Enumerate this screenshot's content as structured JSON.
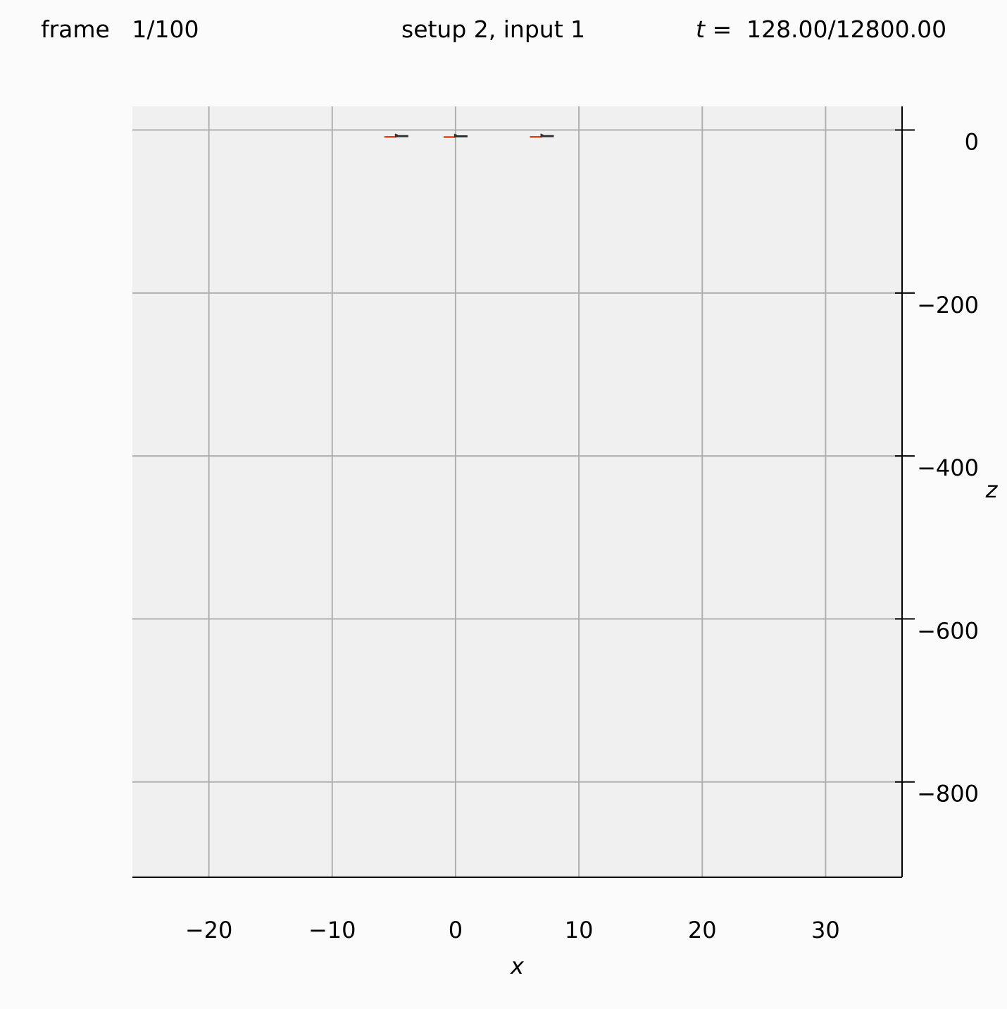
{
  "header": {
    "frame_label": "frame",
    "frame_value": "1/100",
    "setup": "setup 2, input 1",
    "time_var": "t",
    "time_eq": " =  128.00/12800.00"
  },
  "colors": {
    "background": "#fbfbfb",
    "plot_background": "#f0f0f0",
    "grid": "#b0b0b0",
    "tail": "#e8401c",
    "body": "#333333"
  },
  "chart_data": {
    "type": "scatter",
    "xlabel": "x",
    "ylabel": "z",
    "xlim": [
      -26.2,
      36.2
    ],
    "ylim": [
      -917,
      29
    ],
    "xticks": [
      -20,
      -10,
      0,
      10,
      20,
      30
    ],
    "xtick_labels": [
      "−20",
      "−10",
      "0",
      "10",
      "20",
      "30"
    ],
    "yticks": [
      0,
      -200,
      -400,
      -600,
      -800
    ],
    "ytick_labels": [
      "0",
      "−200",
      "−400",
      "−600",
      "−800"
    ],
    "grid": true,
    "y_axis_side": "right",
    "swimmers": [
      {
        "x": -4.8,
        "z": -7.5
      },
      {
        "x": 0.0,
        "z": -7.8
      },
      {
        "x": 7.0,
        "z": -7.5
      }
    ]
  }
}
